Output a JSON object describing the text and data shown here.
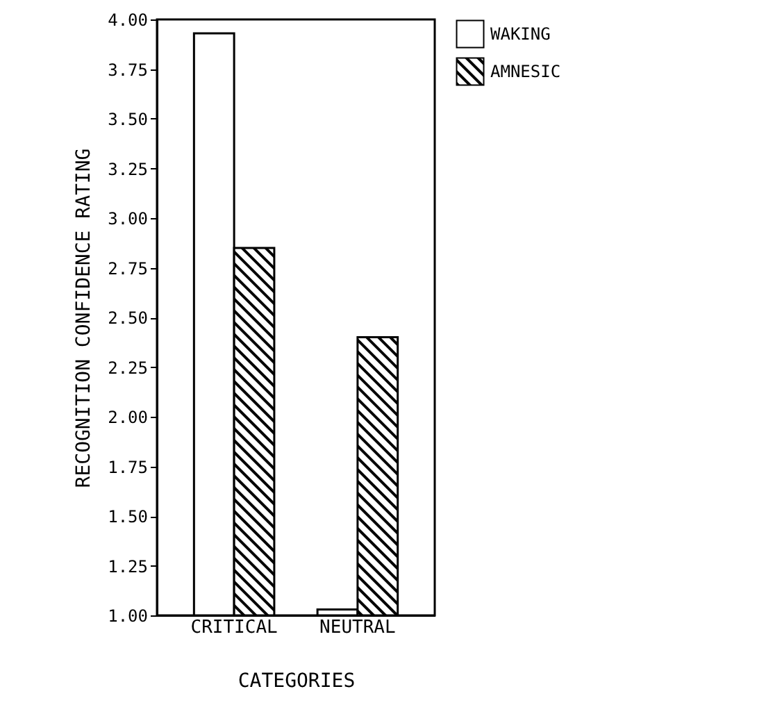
{
  "chart_data": {
    "type": "bar",
    "xlabel": "CATEGORIES",
    "ylabel": "RECOGNITION CONFIDENCE RATING",
    "categories": [
      "CRITICAL",
      "NEUTRAL"
    ],
    "series": [
      {
        "name": "WAKING",
        "color": "#ffffff",
        "values": [
          3.93,
          1.03
        ]
      },
      {
        "name": "AMNESIC",
        "color": "#000000",
        "values": [
          2.85,
          2.4
        ]
      }
    ],
    "ylim": [
      1,
      4
    ],
    "yticks": [
      {
        "value": 1,
        "label": "1.00"
      },
      {
        "value": 1.25,
        "label": "1.25"
      },
      {
        "value": 1.5,
        "label": "1.50"
      },
      {
        "value": 1.75,
        "label": "1.75"
      },
      {
        "value": 2,
        "label": "2.00"
      },
      {
        "value": 2.25,
        "label": "2.25"
      },
      {
        "value": 2.5,
        "label": "2.50"
      },
      {
        "value": 2.75,
        "label": "2.75"
      },
      {
        "value": 3,
        "label": "3.00"
      },
      {
        "value": 3.25,
        "label": "3.25"
      },
      {
        "value": 3.5,
        "label": "3.50"
      },
      {
        "value": 3.75,
        "label": "3.75"
      },
      {
        "value": 4,
        "label": "4.00"
      }
    ],
    "legend": "right"
  }
}
